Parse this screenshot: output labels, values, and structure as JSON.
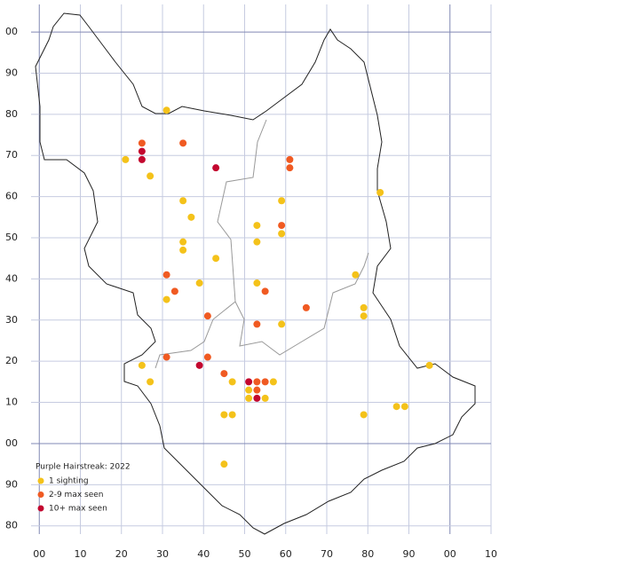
{
  "chart_data": {
    "type": "scatter",
    "title": "Purple Hairstreak:  2022",
    "xlim": [
      -2,
      110
    ],
    "ylim": [
      -22,
      106.7
    ],
    "xticks": [
      {
        "value": 0,
        "label": "00"
      },
      10,
      20,
      30,
      40,
      50,
      60,
      70,
      80,
      90,
      {
        "value": 100,
        "label": "00"
      },
      {
        "value": 110,
        "label": "10"
      }
    ],
    "yticks": [
      {
        "value": 100,
        "label": "00"
      },
      90,
      80,
      70,
      60,
      50,
      40,
      30,
      20,
      10,
      {
        "value": 0,
        "label": "00"
      },
      {
        "value": -10,
        "label": "90"
      },
      {
        "value": -20,
        "label": "80"
      }
    ],
    "grid": true,
    "series": [
      {
        "name": "1 sighting",
        "color": "#f4c21a",
        "x": [
          31,
          21,
          27,
          35,
          37,
          35,
          35,
          43,
          39,
          31,
          53,
          53,
          59,
          59,
          53,
          59,
          83,
          77,
          79,
          79,
          25,
          27,
          47,
          51,
          51,
          55,
          57,
          45,
          47,
          79,
          87,
          89,
          95,
          45
        ],
        "y": [
          81,
          69,
          65,
          59,
          55,
          49,
          47,
          45,
          39,
          35,
          53,
          49,
          59,
          51,
          39,
          29,
          61,
          41,
          33,
          31,
          19,
          15,
          15,
          13,
          11,
          11,
          15,
          7,
          7,
          7,
          9,
          9,
          19,
          -5
        ]
      },
      {
        "name": "2-9 max seen",
        "color": "#f05a22",
        "x": [
          25,
          35,
          61,
          61,
          59,
          31,
          33,
          41,
          55,
          65,
          53,
          31,
          41,
          45,
          53,
          55,
          53
        ],
        "y": [
          73,
          73,
          69,
          67,
          53,
          41,
          37,
          31,
          37,
          33,
          29,
          21,
          21,
          17,
          15,
          15,
          13
        ]
      },
      {
        "name": "10+ max seen",
        "color": "#c3072f",
        "x": [
          25,
          25,
          43,
          39,
          51,
          53
        ],
        "y": [
          71,
          69,
          67,
          19,
          15,
          11
        ]
      }
    ]
  }
}
